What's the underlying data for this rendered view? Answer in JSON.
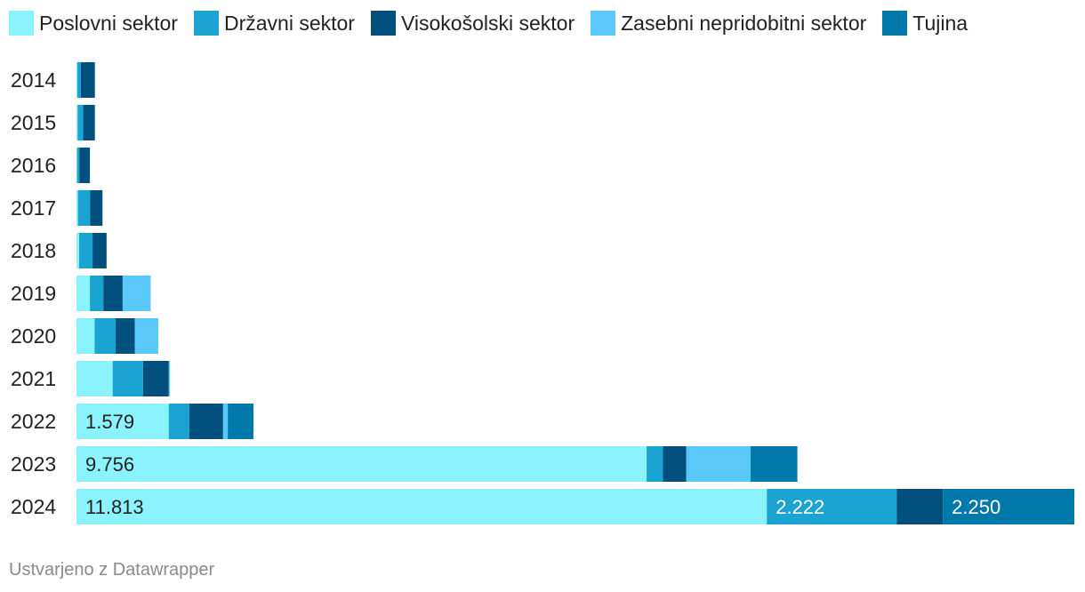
{
  "legend_position": "top",
  "chart_data": {
    "type": "bar",
    "orientation": "horizontal",
    "stacked": true,
    "categories": [
      "2014",
      "2015",
      "2016",
      "2017",
      "2018",
      "2019",
      "2020",
      "2021",
      "2022",
      "2023",
      "2024"
    ],
    "series": [
      {
        "name": "Poslovni sektor",
        "color": "#8bf3fd",
        "values": [
          15,
          20,
          10,
          25,
          45,
          230,
          310,
          620,
          1579,
          9756,
          11813
        ]
      },
      {
        "name": "Državni sektor",
        "color": "#1ba3d2",
        "values": [
          60,
          95,
          40,
          210,
          230,
          230,
          360,
          520,
          350,
          280,
          2222
        ]
      },
      {
        "name": "Visokošolski sektor",
        "color": "#004f7d",
        "values": [
          240,
          200,
          180,
          210,
          240,
          330,
          330,
          440,
          580,
          400,
          790
        ]
      },
      {
        "name": "Zasebni nepridobitni sektor",
        "color": "#5ac8fa",
        "values": [
          0,
          0,
          0,
          0,
          0,
          480,
          400,
          20,
          80,
          1100,
          0
        ]
      },
      {
        "name": "Tujina",
        "color": "#0079aa",
        "values": [
          0,
          0,
          0,
          0,
          0,
          0,
          0,
          0,
          440,
          800,
          2250
        ]
      }
    ],
    "data_labels": [
      {
        "category": "2022",
        "series": "Poslovni sektor",
        "text": "1.579"
      },
      {
        "category": "2023",
        "series": "Poslovni sektor",
        "text": "9.756"
      },
      {
        "category": "2024",
        "series": "Poslovni sektor",
        "text": "11.813"
      },
      {
        "category": "2024",
        "series": "Državni sektor",
        "text": "2.222"
      },
      {
        "category": "2024",
        "series": "Tujina",
        "text": "2.250"
      }
    ],
    "xlim": [
      0,
      17075
    ],
    "grid": false
  },
  "footer": "Ustvarjeno z Datawrapper"
}
